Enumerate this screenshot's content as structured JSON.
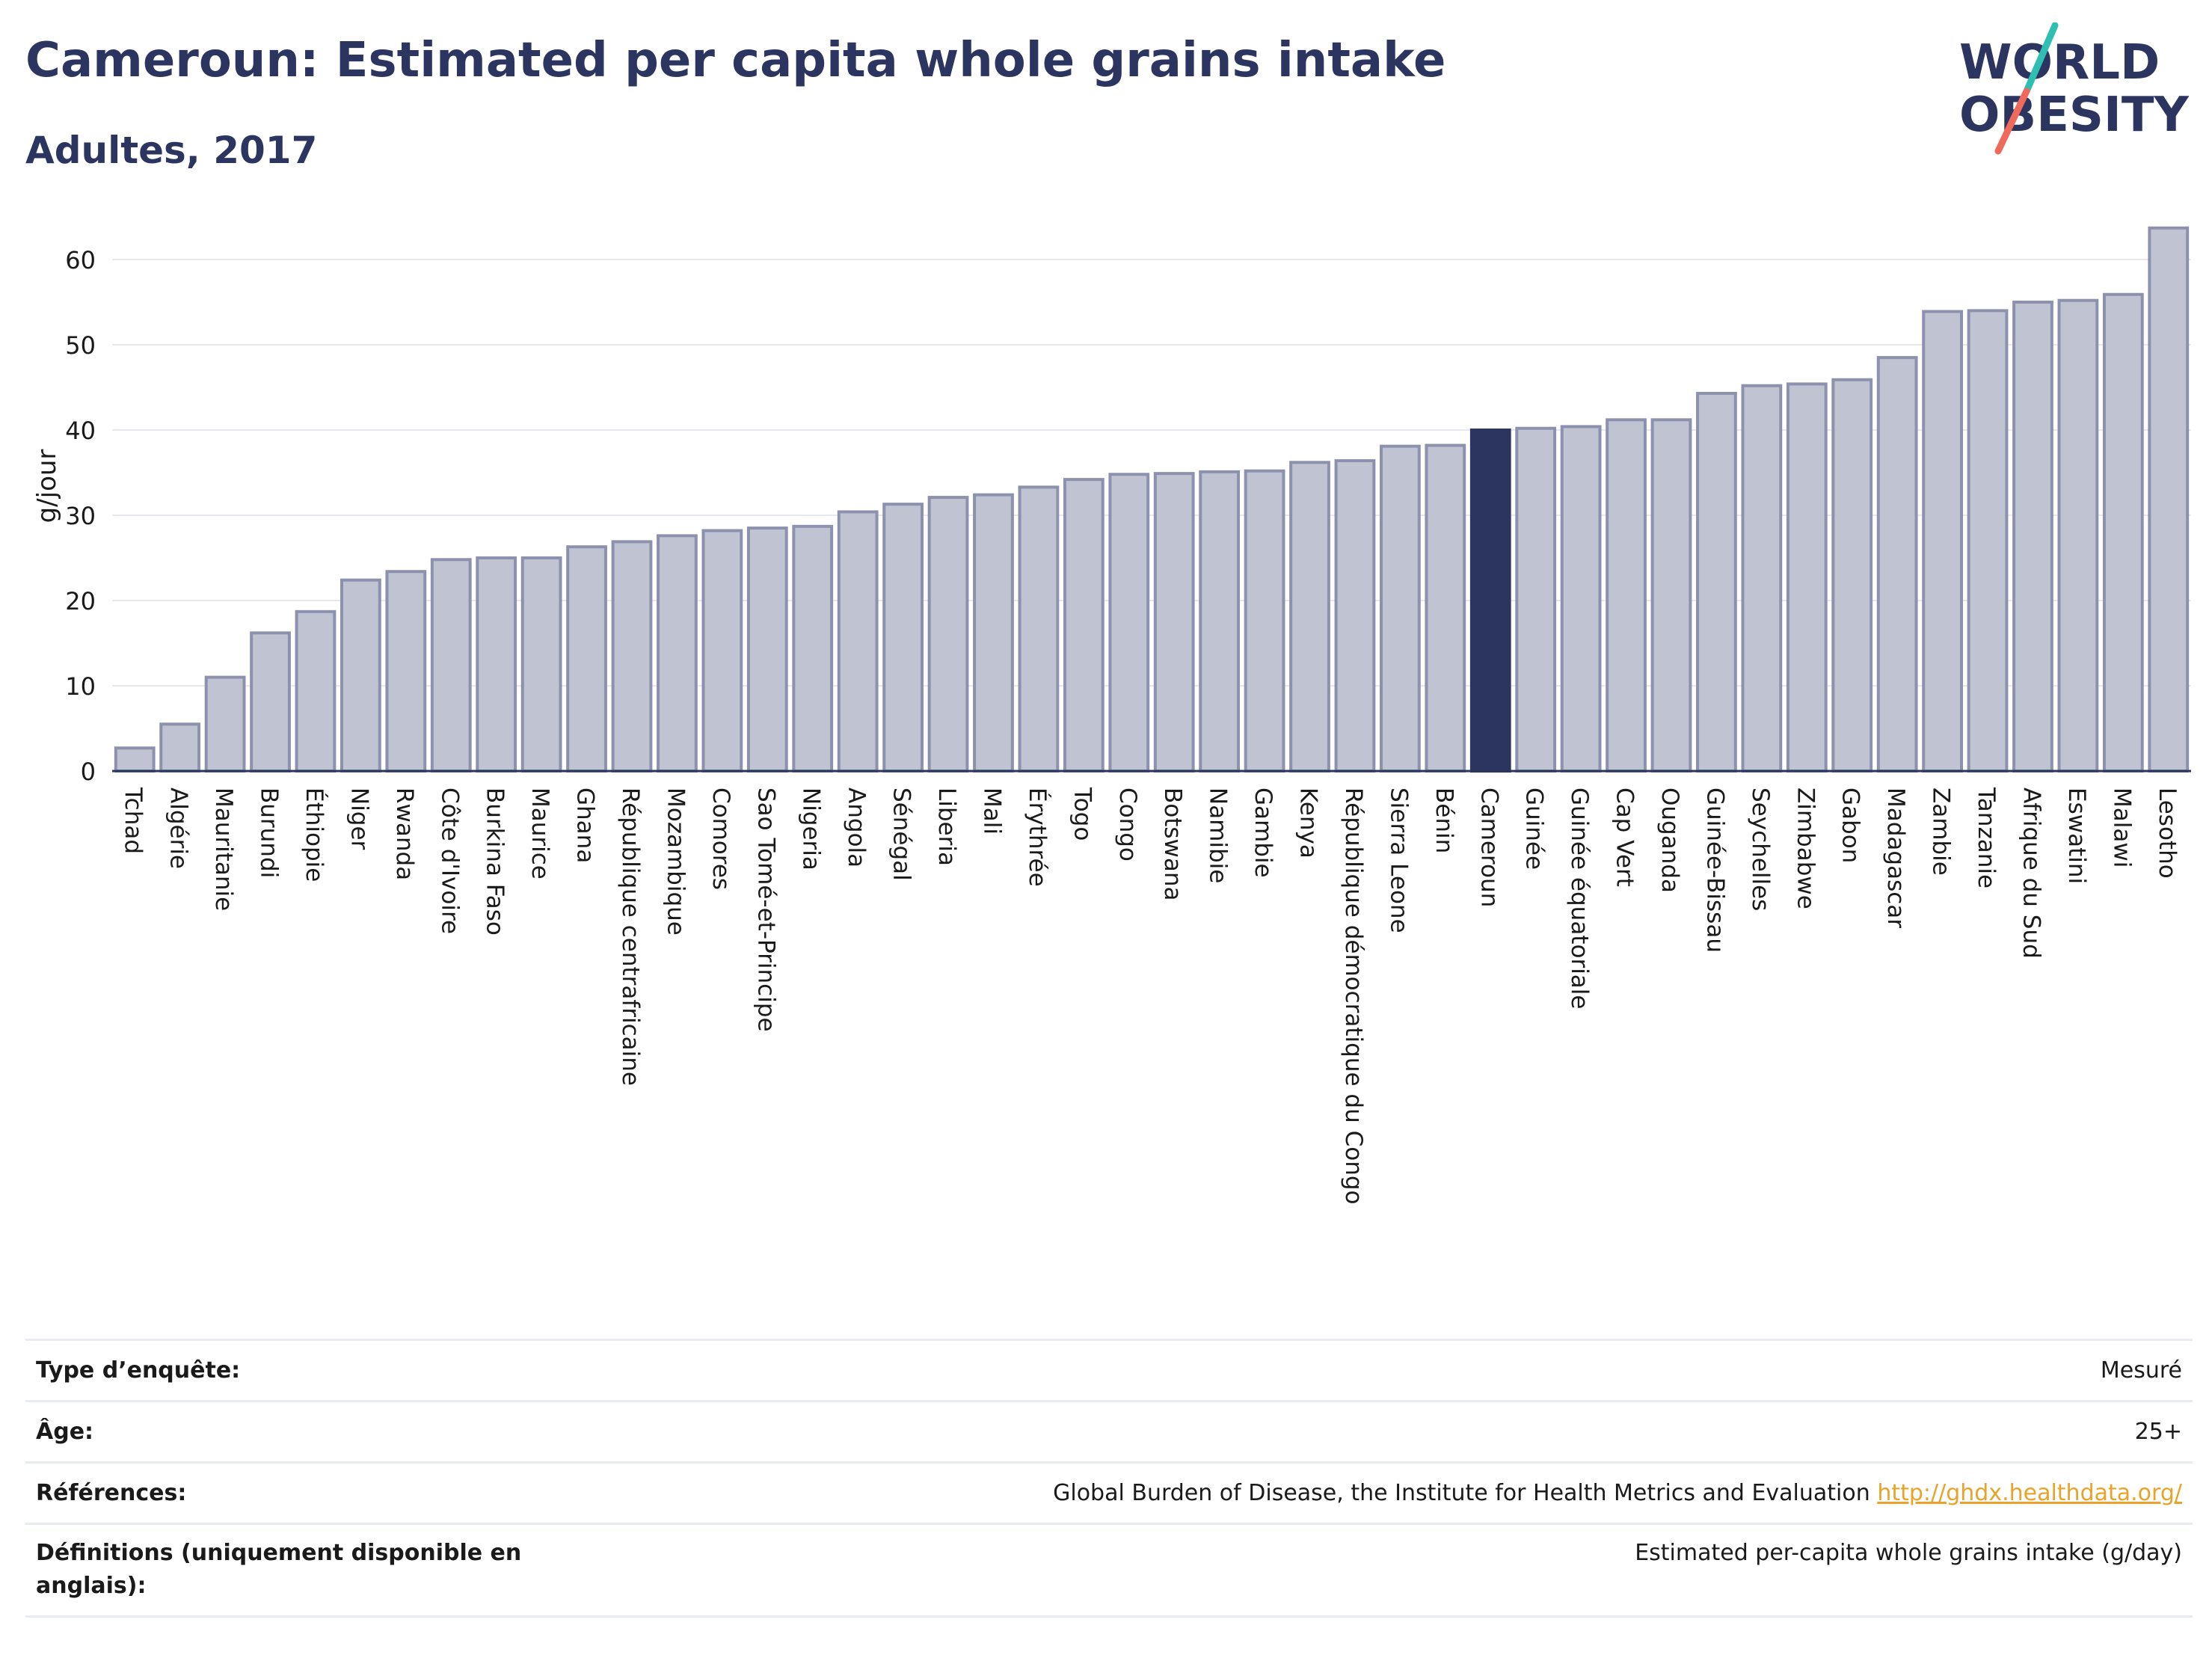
{
  "header": {
    "title": "Cameroun: Estimated per capita whole grains intake",
    "subtitle": "Adultes, 2017"
  },
  "logo": {
    "line1": "WORLD",
    "line2": "OBESITY"
  },
  "chart_data": {
    "type": "bar",
    "ylabel": "g/jour",
    "ylim": [
      0,
      65
    ],
    "yticks": [
      0,
      10,
      20,
      30,
      40,
      50,
      60
    ],
    "grid": true,
    "highlight": "Cameroun",
    "colors": {
      "bar": "#c0c4d2",
      "bar_border": "#8c92ad",
      "highlight": "#2b3560",
      "grid": "#e6e8ee",
      "axis": "#2b3560"
    },
    "categories": [
      "Tchad",
      "Algérie",
      "Mauritanie",
      "Burundi",
      "Éthiopie",
      "Niger",
      "Rwanda",
      "Côte d'Ivoire",
      "Burkina Faso",
      "Maurice",
      "Ghana",
      "République centrafricaine",
      "Mozambique",
      "Comores",
      "Sao Tomé-et-Principe",
      "Nigeria",
      "Angola",
      "Sénégal",
      "Liberia",
      "Mali",
      "Érythrée",
      "Togo",
      "Congo",
      "Botswana",
      "Namibie",
      "Gambie",
      "Kenya",
      "République démocratique du Congo",
      "Sierra Leone",
      "Bénin",
      "Cameroun",
      "Guinée",
      "Guinée équatoriale",
      "Cap Vert",
      "Ouganda",
      "Guinée-Bissau",
      "Seychelles",
      "Zimbabwe",
      "Gabon",
      "Madagascar",
      "Zambie",
      "Tanzanie",
      "Afrique du Sud",
      "Eswatini",
      "Malawi",
      "Lesotho"
    ],
    "values": [
      2.7,
      5.5,
      11.0,
      16.2,
      18.7,
      22.4,
      23.4,
      24.8,
      25.0,
      25.0,
      26.3,
      26.9,
      27.6,
      28.2,
      28.5,
      28.7,
      30.4,
      31.3,
      32.1,
      32.4,
      33.3,
      34.2,
      34.8,
      34.9,
      35.1,
      35.2,
      36.2,
      36.4,
      38.1,
      38.2,
      40.0,
      40.2,
      40.4,
      41.2,
      41.2,
      44.3,
      45.2,
      45.4,
      45.9,
      48.5,
      53.9,
      54.0,
      55.0,
      55.2,
      55.9,
      63.7
    ]
  },
  "info": {
    "rows": [
      {
        "label": "Type d’enquête:",
        "value": "Mesuré"
      },
      {
        "label": "Âge:",
        "value": "25+"
      },
      {
        "label": "Références:",
        "value": "Global Burden of Disease, the Institute for Health Metrics and Evaluation",
        "link": "http://ghdx.healthdata.org/"
      },
      {
        "label": "Définitions (uniquement disponible en anglais):",
        "value": "Estimated per-capita whole grains intake (g/day)"
      }
    ]
  }
}
